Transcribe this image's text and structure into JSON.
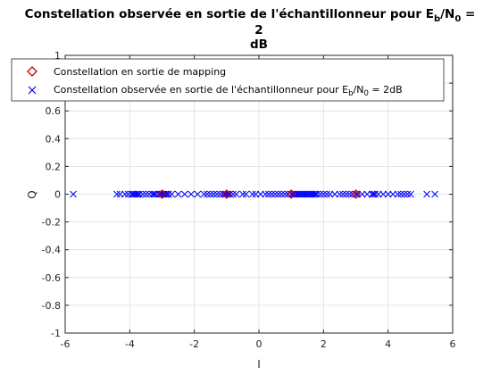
{
  "chart_data": {
    "type": "scatter",
    "title": {
      "line1_prefix": "Constellation observée en sortie de l'échantillonneur pour E",
      "line1_sub": "b",
      "line1_mid": "/N",
      "line1_sub2": "0",
      "line1_suffix": " =",
      "line2": "2",
      "line3": "dB"
    },
    "xlabel": "I",
    "ylabel": "Q",
    "xlim": [
      -6,
      6
    ],
    "ylim": [
      -1,
      1
    ],
    "xticks": [
      "-6",
      "-4",
      "-2",
      "0",
      "2",
      "4",
      "6"
    ],
    "yticks": [
      "-1",
      "-0.8",
      "-0.6",
      "-0.4",
      "-0.2",
      "0",
      "0.2",
      "0.4",
      "0.6",
      "0.8",
      "1"
    ],
    "grid": true,
    "legend_position": "top-left",
    "series": [
      {
        "name": "Constellation en sortie de mapping",
        "marker": "diamond",
        "color": "#cc0000",
        "x": [
          -3,
          -1,
          1,
          3
        ],
        "y": [
          0,
          0,
          0,
          0
        ]
      },
      {
        "name_prefix": "Constellation observée en sortie de l'échantillonneur pour E",
        "name_sub": "b",
        "name_mid": "/N",
        "name_sub2": "0",
        "name_suffix": " = 2dB",
        "marker": "x",
        "color": "#0000ff",
        "x": [
          -5.75,
          -4.4,
          -4.3,
          -4.15,
          -4.05,
          -3.95,
          -3.9,
          -3.85,
          -3.8,
          -3.75,
          -3.7,
          -3.6,
          -3.5,
          -3.4,
          -3.3,
          -3.25,
          -3.2,
          -3.1,
          -3.05,
          -3.0,
          -3.0,
          -2.95,
          -2.95,
          -2.9,
          -2.9,
          -2.85,
          -2.8,
          -2.7,
          -2.5,
          -2.3,
          -2.1,
          -1.9,
          -1.7,
          -1.6,
          -1.5,
          -1.4,
          -1.3,
          -1.2,
          -1.1,
          -1.05,
          -1.0,
          -0.95,
          -0.9,
          -0.8,
          -0.7,
          -0.5,
          -0.4,
          -0.2,
          -0.1,
          0.05,
          0.2,
          0.3,
          0.4,
          0.5,
          0.6,
          0.7,
          0.8,
          0.9,
          1.0,
          1.05,
          1.1,
          1.15,
          1.2,
          1.25,
          1.3,
          1.35,
          1.4,
          1.45,
          1.5,
          1.55,
          1.6,
          1.65,
          1.7,
          1.75,
          1.8,
          1.9,
          2.0,
          2.1,
          2.2,
          2.35,
          2.5,
          2.6,
          2.7,
          2.8,
          2.9,
          3.0,
          3.05,
          3.2,
          3.35,
          3.5,
          3.55,
          3.6,
          3.7,
          3.85,
          4.0,
          4.15,
          4.3,
          4.4,
          4.5,
          4.6,
          4.7,
          5.2,
          5.45
        ],
        "y": [
          0,
          0,
          0,
          0,
          0,
          0,
          0,
          0,
          0,
          0,
          0,
          0,
          0,
          0,
          0,
          0,
          0,
          0,
          0,
          0,
          0,
          0,
          0,
          0,
          0,
          0,
          0,
          0,
          0,
          0,
          0,
          0,
          0,
          0,
          0,
          0,
          0,
          0,
          0,
          0,
          0,
          0,
          0,
          0,
          0,
          0,
          0,
          0,
          0,
          0,
          0,
          0,
          0,
          0,
          0,
          0,
          0,
          0,
          0,
          0,
          0,
          0,
          0,
          0,
          0,
          0,
          0,
          0,
          0,
          0,
          0,
          0,
          0,
          0,
          0,
          0,
          0,
          0,
          0,
          0,
          0,
          0,
          0,
          0,
          0,
          0,
          0,
          0,
          0,
          0,
          0,
          0,
          0,
          0,
          0,
          0,
          0,
          0,
          0,
          0,
          0,
          0,
          0
        ]
      }
    ]
  }
}
